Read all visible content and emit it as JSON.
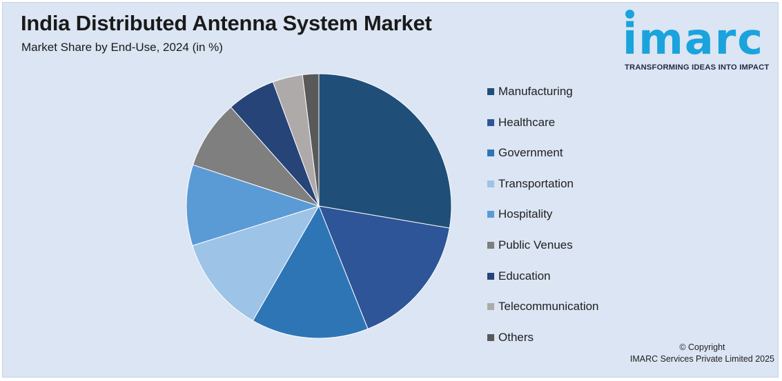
{
  "header": {
    "title": "India Distributed Antenna System Market",
    "subtitle": "Market Share by End-Use, 2024 (in %)"
  },
  "logo": {
    "word": "imarc",
    "tagline": "TRANSFORMING IDEAS INTO IMPACT",
    "color": "#1aa3dc"
  },
  "footer": {
    "copyright_line1": "© Copyright",
    "copyright_line2": "IMARC Services Private Limited 2025"
  },
  "chart_data": {
    "type": "pie",
    "title": "India Distributed Antenna System Market",
    "subtitle": "Market Share by End-Use, 2024 (in %)",
    "legend_position": "right",
    "categories": [
      "Manufacturing",
      "Healthcare",
      "Government",
      "Transportation",
      "Hospitality",
      "Public Venues",
      "Education",
      "Telecommunication",
      "Others"
    ],
    "values": [
      28.0,
      16.5,
      14.5,
      12.0,
      10.0,
      8.5,
      6.0,
      3.7,
      2.0
    ],
    "colors": [
      "#1f4e79",
      "#2e5597",
      "#2e75b6",
      "#9dc3e6",
      "#5b9bd5",
      "#7f7f7f",
      "#264478",
      "#aeaaaa",
      "#595959"
    ]
  }
}
